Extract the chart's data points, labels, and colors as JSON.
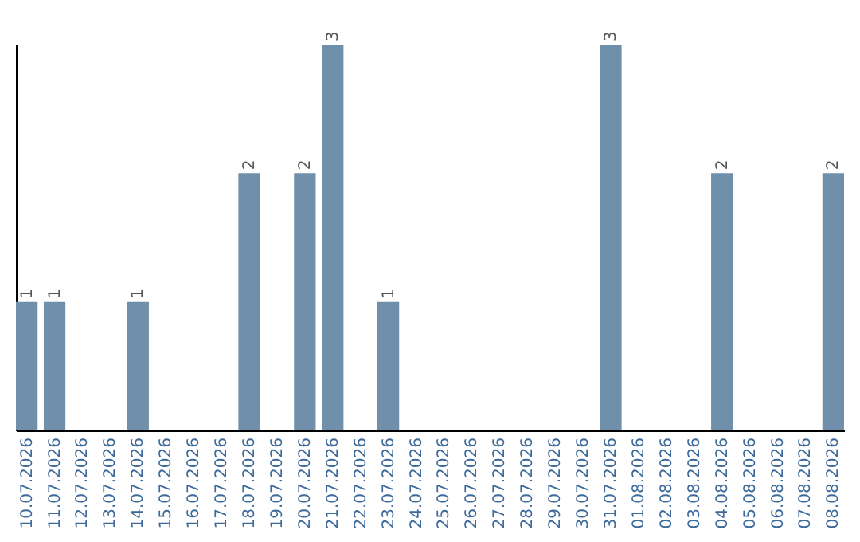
{
  "chart_data": {
    "type": "bar",
    "categories": [
      "10.07.2026",
      "11.07.2026",
      "12.07.2026",
      "13.07.2026",
      "14.07.2026",
      "15.07.2026",
      "16.07.2026",
      "17.07.2026",
      "18.07.2026",
      "19.07.2026",
      "20.07.2026",
      "21.07.2026",
      "22.07.2026",
      "23.07.2026",
      "24.07.2026",
      "25.07.2026",
      "26.07.2026",
      "27.07.2026",
      "28.07.2026",
      "29.07.2026",
      "30.07.2026",
      "31.07.2026",
      "01.08.2026",
      "02.08.2026",
      "03.08.2026",
      "04.08.2026",
      "05.08.2026",
      "06.08.2026",
      "07.08.2026",
      "08.08.2026"
    ],
    "values": [
      1,
      1,
      0,
      0,
      1,
      0,
      0,
      0,
      2,
      0,
      2,
      3,
      0,
      1,
      0,
      0,
      0,
      0,
      0,
      0,
      0,
      3,
      0,
      0,
      0,
      2,
      0,
      0,
      0,
      2
    ],
    "value_labels": [
      "1",
      "1",
      null,
      null,
      "1",
      null,
      null,
      null,
      "2",
      null,
      "2",
      "3",
      null,
      "1",
      null,
      null,
      null,
      null,
      null,
      null,
      null,
      "3",
      null,
      null,
      null,
      "2",
      null,
      null,
      null,
      "2"
    ],
    "color": "#6f8fab",
    "ylim": [
      0,
      3
    ],
    "tick_labels": "x"
  }
}
